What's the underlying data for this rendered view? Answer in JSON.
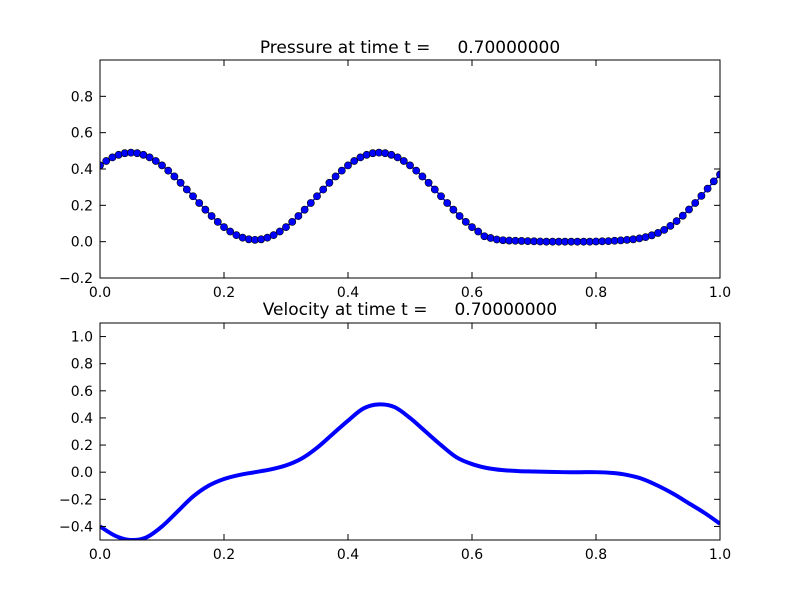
{
  "chart_data": [
    {
      "type": "line",
      "title": "Pressure at time t =     0.70000000",
      "xlabel": "",
      "ylabel": "",
      "xlim": [
        0.0,
        1.0
      ],
      "ylim": [
        -0.2,
        1.0
      ],
      "xticks": [
        "0.0",
        "0.2",
        "0.4",
        "0.6",
        "0.8",
        "1.0"
      ],
      "yticks": [
        "−0.2",
        "0.0",
        "0.2",
        "0.4",
        "0.6",
        "0.8"
      ],
      "xtick_values": [
        0,
        0.2,
        0.4,
        0.6,
        0.8,
        1.0
      ],
      "ytick_values": [
        -0.2,
        0,
        0.2,
        0.4,
        0.6,
        0.8
      ],
      "grid": false,
      "series": [
        {
          "name": "pressure",
          "color": "#0000ff",
          "marker": "circle",
          "x_start": 0.0,
          "x_step": 0.01,
          "values": [
            0.42,
            0.444,
            0.464,
            0.478,
            0.487,
            0.49,
            0.487,
            0.478,
            0.464,
            0.444,
            0.42,
            0.391,
            0.359,
            0.324,
            0.287,
            0.25,
            0.213,
            0.176,
            0.141,
            0.109,
            0.08,
            0.056,
            0.036,
            0.022,
            0.013,
            0.01,
            0.013,
            0.022,
            0.036,
            0.056,
            0.08,
            0.109,
            0.141,
            0.176,
            0.213,
            0.25,
            0.287,
            0.324,
            0.359,
            0.391,
            0.42,
            0.444,
            0.464,
            0.478,
            0.487,
            0.49,
            0.487,
            0.478,
            0.464,
            0.444,
            0.42,
            0.391,
            0.359,
            0.324,
            0.287,
            0.25,
            0.213,
            0.176,
            0.141,
            0.109,
            0.08,
            0.056,
            0.03,
            0.02,
            0.012,
            0.008,
            0.006,
            0.005,
            0.004,
            0.003,
            0.002,
            0.001,
            0,
            0,
            0,
            0,
            0,
            0,
            0,
            0,
            0.001,
            0.002,
            0.003,
            0.005,
            0.007,
            0.01,
            0.013,
            0.018,
            0.025,
            0.035,
            0.048,
            0.065,
            0.087,
            0.113,
            0.143,
            0.177,
            0.213,
            0.252,
            0.292,
            0.332,
            0.37
          ]
        }
      ]
    },
    {
      "type": "line",
      "title": "Velocity at time t =     0.70000000",
      "xlabel": "",
      "ylabel": "",
      "xlim": [
        0.0,
        1.0
      ],
      "ylim": [
        -0.5,
        1.1
      ],
      "xticks": [
        "0.0",
        "0.2",
        "0.4",
        "0.6",
        "0.8",
        "1.0"
      ],
      "yticks": [
        "−0.4",
        "−0.2",
        "0.0",
        "0.2",
        "0.4",
        "0.6",
        "0.8",
        "1.0"
      ],
      "xtick_values": [
        0,
        0.2,
        0.4,
        0.6,
        0.8,
        1.0
      ],
      "ytick_values": [
        -0.4,
        -0.2,
        0,
        0.2,
        0.4,
        0.6,
        0.8,
        1.0
      ],
      "grid": false,
      "series": [
        {
          "name": "velocity",
          "color": "#0000ff",
          "marker": "none",
          "x_start": 0.0,
          "x_step": 0.025,
          "values": [
            -0.4,
            -0.47,
            -0.5,
            -0.48,
            -0.4,
            -0.29,
            -0.18,
            -0.1,
            -0.05,
            -0.02,
            0.0,
            0.02,
            0.05,
            0.1,
            0.18,
            0.28,
            0.38,
            0.47,
            0.5,
            0.48,
            0.4,
            0.3,
            0.2,
            0.11,
            0.06,
            0.03,
            0.015,
            0.008,
            0.005,
            0.002,
            0.0,
            0.0,
            0.0,
            -0.005,
            -0.02,
            -0.05,
            -0.1,
            -0.16,
            -0.23,
            -0.3,
            -0.38
          ]
        }
      ]
    }
  ]
}
